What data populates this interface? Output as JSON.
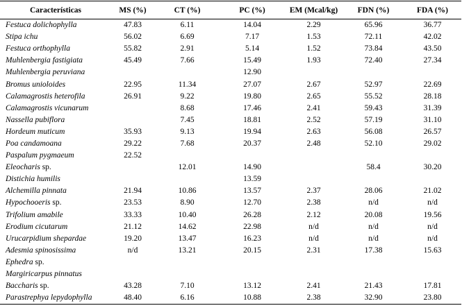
{
  "headers": [
    "Características",
    "MS (%)",
    "CT (%)",
    "PC (%)",
    "EM (Mcal/kg)",
    "FDN (%)",
    "FDA (%)"
  ],
  "rows": [
    {
      "name": "Festuca dolichophylla",
      "suffix": "",
      "values": [
        "47.83",
        "6.11",
        "14.04",
        "2.29",
        "65.96",
        "36.77"
      ]
    },
    {
      "name": "Stipa ichu",
      "suffix": "",
      "values": [
        "56.02",
        "6.69",
        "7.17",
        "1.53",
        "72.11",
        "42.02"
      ]
    },
    {
      "name": "Festuca orthophylla",
      "suffix": "",
      "values": [
        "55.82",
        "2.91",
        "5.14",
        "1.52",
        "73.84",
        "43.50"
      ]
    },
    {
      "name": "Muhlenbergia fastigiata",
      "suffix": "",
      "values": [
        "45.49",
        "7.66",
        "15.49",
        "1.93",
        "72.40",
        "27.34"
      ]
    },
    {
      "name": "Muhlenbergia peruviana",
      "suffix": "",
      "values": [
        "",
        "",
        "12.90",
        "",
        "",
        ""
      ]
    },
    {
      "name": "Bromus unioloides",
      "suffix": "",
      "values": [
        "22.95",
        "11.34",
        "27.07",
        "2.67",
        "52.97",
        "22.69"
      ]
    },
    {
      "name": "Calamagrostis heterofila",
      "suffix": "",
      "values": [
        "26.91",
        "9.22",
        "19.80",
        "2.65",
        "55.52",
        "28.18"
      ]
    },
    {
      "name": "Calamagrostis vicunarum",
      "suffix": "",
      "values": [
        "",
        "8.68",
        "17.46",
        "2.41",
        "59.43",
        "31.39"
      ]
    },
    {
      "name": "Nassella pubiflora",
      "suffix": "",
      "values": [
        "",
        "7.45",
        "18.81",
        "2.52",
        "57.19",
        "31.10"
      ]
    },
    {
      "name": "Hordeum muticum",
      "suffix": "",
      "values": [
        "35.93",
        "9.13",
        "19.94",
        "2.63",
        "56.08",
        "26.57"
      ]
    },
    {
      "name": "Poa candamoana",
      "suffix": "",
      "values": [
        "29.22",
        "7.68",
        "20.37",
        "2.48",
        "52.10",
        "29.02"
      ]
    },
    {
      "name": "Paspalum pygmaeum",
      "suffix": "",
      "values": [
        "22.52",
        "",
        "",
        "",
        "",
        ""
      ]
    },
    {
      "name": "Eleocharis",
      "suffix": " sp.",
      "values": [
        "",
        "12.01",
        "14.90",
        "",
        "58.4",
        "30.20"
      ]
    },
    {
      "name": "Distichia humilis",
      "suffix": "",
      "values": [
        "",
        "",
        "13.59",
        "",
        "",
        ""
      ]
    },
    {
      "name": "Alchemilla pinnata",
      "suffix": "",
      "values": [
        "21.94",
        "10.86",
        "13.57",
        "2.37",
        "28.06",
        "21.02"
      ]
    },
    {
      "name": "Hypochooeris",
      "suffix": " sp.",
      "values": [
        "23.53",
        "8.90",
        "12.70",
        "2.38",
        "n/d",
        "n/d"
      ]
    },
    {
      "name": "Trifolium amabile",
      "suffix": "",
      "values": [
        "33.33",
        "10.40",
        "26.28",
        "2.12",
        "20.08",
        "19.56"
      ]
    },
    {
      "name": "Erodium cicutarum",
      "suffix": "",
      "values": [
        "21.12",
        "14.62",
        "22.98",
        "n/d",
        "n/d",
        "n/d"
      ]
    },
    {
      "name": "Urucarpidium shepardae",
      "suffix": "",
      "values": [
        "19.20",
        "13.47",
        "16.23",
        "n/d",
        "n/d",
        "n/d"
      ]
    },
    {
      "name": "Adesmia spinosissima",
      "suffix": "",
      "values": [
        "n/d",
        "13.21",
        "20.15",
        "2.31",
        "17.38",
        "15.63"
      ]
    },
    {
      "name": "Ephedra",
      "suffix": " sp.",
      "values": [
        "",
        "",
        "",
        "",
        "",
        ""
      ]
    },
    {
      "name": "Margiricarpus pinnatus",
      "suffix": "",
      "values": [
        "",
        "",
        "",
        "",
        "",
        ""
      ]
    },
    {
      "name": "Baccharis",
      "suffix": " sp.",
      "values": [
        "43.28",
        "7.10",
        "13.12",
        "2.41",
        "21.43",
        "17.81"
      ]
    },
    {
      "name": "Parastrephya lepydophylla",
      "suffix": "",
      "values": [
        "48.40",
        "6.16",
        "10.88",
        "2.38",
        "32.90",
        "23.80"
      ]
    }
  ]
}
